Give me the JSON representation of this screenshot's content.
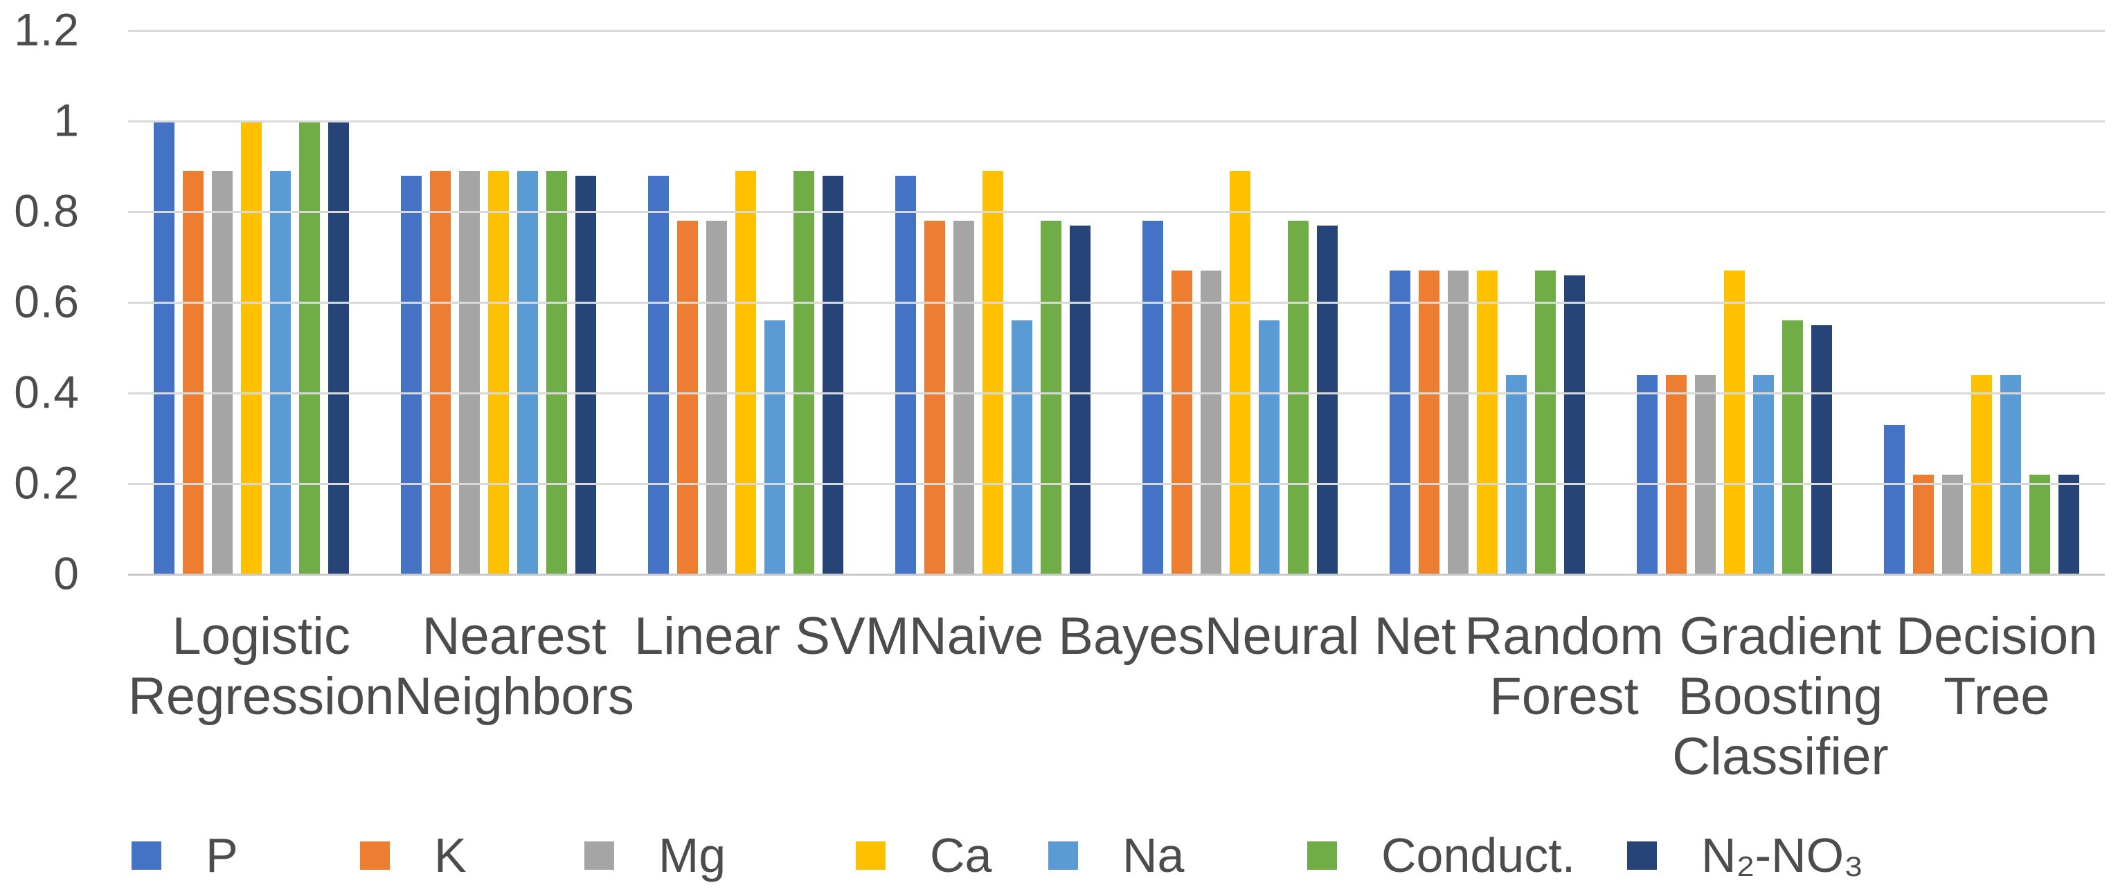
{
  "chart_data": {
    "type": "bar",
    "title": "",
    "xlabel": "",
    "ylabel": "",
    "categories": [
      "Logistic Regression",
      "Nearest Neighbors",
      "Linear SVM",
      "Naive Bayes",
      "Neural Net",
      "Random Forest",
      "Gradient Boosting Classifier",
      "Decision Tree"
    ],
    "category_label_lines": [
      [
        "Logistic",
        "Regression"
      ],
      [
        "Nearest",
        "Neighbors"
      ],
      [
        "Linear SVM"
      ],
      [
        "Naive Bayes"
      ],
      [
        "Neural Net"
      ],
      [
        "Random",
        "Forest"
      ],
      [
        "Gradient",
        "Boosting",
        "Classifier"
      ],
      [
        "Decision",
        "Tree"
      ]
    ],
    "series": [
      {
        "name": "P",
        "color": "#4472C4",
        "values": [
          1.0,
          0.88,
          0.88,
          0.88,
          0.78,
          0.67,
          0.44,
          0.33
        ]
      },
      {
        "name": "K",
        "color": "#ED7D31",
        "values": [
          0.89,
          0.89,
          0.78,
          0.78,
          0.67,
          0.67,
          0.44,
          0.22
        ]
      },
      {
        "name": "Mg",
        "color": "#A5A5A5",
        "values": [
          0.89,
          0.89,
          0.78,
          0.78,
          0.67,
          0.67,
          0.44,
          0.22
        ]
      },
      {
        "name": "Ca",
        "color": "#FFC000",
        "values": [
          1.0,
          0.89,
          0.89,
          0.89,
          0.89,
          0.67,
          0.67,
          0.44
        ]
      },
      {
        "name": "Na",
        "color": "#5B9BD5",
        "values": [
          0.89,
          0.89,
          0.56,
          0.56,
          0.56,
          0.44,
          0.44,
          0.44
        ]
      },
      {
        "name": "Conduct.",
        "color": "#70AD47",
        "values": [
          1.0,
          0.89,
          0.89,
          0.78,
          0.78,
          0.67,
          0.56,
          0.22
        ]
      },
      {
        "name": "N₂-NO₃",
        "color": "#264478",
        "values": [
          1.0,
          0.88,
          0.88,
          0.77,
          0.77,
          0.66,
          0.55,
          0.22
        ]
      }
    ],
    "ylim": [
      0,
      1.2
    ],
    "yticks": [
      0,
      0.2,
      0.4,
      0.6,
      0.8,
      1,
      1.2
    ],
    "ytick_labels": [
      "0",
      "0.2",
      "0.4",
      "0.6",
      "0.8",
      "1",
      "1.2"
    ],
    "grid": "horizontal",
    "gridline_color": "#d9d9d9",
    "axis_text_color": "#4c4c4c",
    "legend_position": "bottom"
  }
}
